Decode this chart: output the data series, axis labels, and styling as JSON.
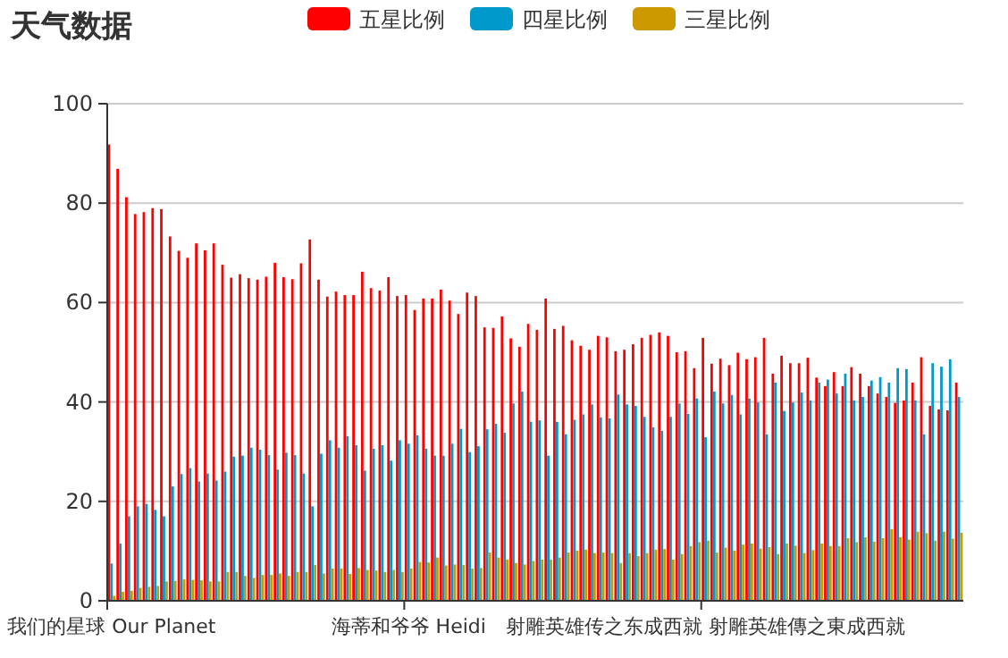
{
  "chart_data": {
    "type": "bar",
    "title": "天气数据",
    "legend": "top",
    "grid": "y",
    "ylim": [
      0,
      100
    ],
    "yticks": [
      0,
      20,
      40,
      60,
      80,
      100
    ],
    "categories": [
      "我们的星球 Our Planet",
      null,
      null,
      null,
      null,
      null,
      null,
      null,
      null,
      null,
      null,
      null,
      null,
      null,
      null,
      null,
      null,
      null,
      null,
      null,
      null,
      null,
      null,
      null,
      null,
      null,
      null,
      null,
      null,
      null,
      null,
      null,
      null,
      null,
      "海蒂和爷爷 Heidi",
      null,
      null,
      null,
      null,
      null,
      null,
      null,
      null,
      null,
      null,
      null,
      null,
      null,
      null,
      null,
      null,
      null,
      null,
      null,
      null,
      null,
      null,
      null,
      null,
      null,
      null,
      null,
      null,
      null,
      null,
      null,
      null,
      null,
      "射雕英雄传之东成西就 射雕英雄傳之東成西就",
      null,
      null,
      null,
      null,
      null,
      null,
      null,
      null,
      null,
      null,
      null,
      null,
      null,
      null,
      null,
      null,
      null,
      null,
      null,
      null,
      null,
      null,
      null,
      null,
      null,
      null,
      null,
      null,
      null
    ],
    "series": [
      {
        "name": "五星比例",
        "color": "#ff0000",
        "values": [
          91.8,
          86.9,
          81.2,
          77.8,
          78.2,
          79,
          78.8,
          73.3,
          70.4,
          69,
          71.9,
          70.5,
          71.9,
          67.6,
          65,
          65.7,
          64.9,
          64.6,
          65.2,
          68,
          65.1,
          64.7,
          67.9,
          72.7,
          64.6,
          61.2,
          62.2,
          61.5,
          61.5,
          66.2,
          62.9,
          62.4,
          65.1,
          61.3,
          61.5,
          58.5,
          60.8,
          60.8,
          62.6,
          60.4,
          57.7,
          62,
          61.3,
          55,
          54.9,
          57.2,
          52.8,
          51.1,
          55.7,
          54.5,
          60.8,
          54.7,
          55.3,
          52.4,
          51.3,
          50.5,
          53.3,
          53,
          50.2,
          50.5,
          51.6,
          52.9,
          53.5,
          54,
          53.3,
          50,
          50.2,
          46.8,
          52.9,
          47.7,
          48.7,
          47.4,
          49.9,
          48.6,
          49,
          52.9,
          45.7,
          49.3,
          47.8,
          47.8,
          48.9,
          44.9,
          43.2,
          46,
          43.2,
          47,
          45.7,
          43.2,
          41.7,
          41,
          39.8,
          40.3,
          43.9,
          49,
          39.2,
          38.5,
          38.3,
          43.9
        ]
      },
      {
        "name": "四星比例",
        "color": "#0099cc",
        "values": [
          7.5,
          11.5,
          17,
          19,
          19.5,
          18.3,
          17,
          23,
          25.5,
          26.7,
          24,
          25.6,
          24.2,
          26,
          29,
          29.2,
          30.8,
          30.4,
          29.3,
          26.4,
          29.8,
          29.3,
          25.6,
          19,
          29.6,
          32.3,
          30.8,
          33.1,
          31.3,
          26.2,
          30.6,
          31.3,
          28.2,
          32.3,
          31.6,
          33.3,
          30.6,
          29.2,
          29.2,
          31.6,
          34.6,
          29.9,
          31.1,
          34.5,
          35.6,
          33.8,
          39.7,
          42.1,
          36,
          36.3,
          29.2,
          36,
          33.5,
          36.4,
          37.5,
          39.5,
          36.9,
          36.7,
          41.5,
          39.5,
          39.2,
          37,
          34.9,
          34.2,
          37,
          39.7,
          37.6,
          40.7,
          32.9,
          42.1,
          39.7,
          41.4,
          37.5,
          40.7,
          39.9,
          33.5,
          43.9,
          38.2,
          39.9,
          41.9,
          40.3,
          43.9,
          44.5,
          41.7,
          45.7,
          40.3,
          41,
          44.3,
          45,
          43.9,
          46.8,
          46.6,
          40.3,
          33.5,
          47.8,
          47.1,
          48.6,
          41
        ]
      },
      {
        "name": "三星比例",
        "color": "#cc9900",
        "values": [
          1,
          1.8,
          2,
          2.6,
          2.8,
          3,
          3.9,
          4,
          4.3,
          4.2,
          4.1,
          3.9,
          3.9,
          5.8,
          5.8,
          5,
          4.6,
          5.2,
          5.2,
          5.5,
          5,
          5.8,
          5.8,
          7.2,
          5.5,
          6.5,
          6.5,
          5.4,
          6.6,
          6.2,
          6.1,
          5.8,
          6.2,
          5.8,
          6.5,
          7.8,
          7.7,
          8.7,
          7.1,
          7.3,
          7.2,
          6.5,
          6.6,
          9.7,
          8.7,
          8.3,
          7.6,
          7.3,
          8,
          8.3,
          8.3,
          8.7,
          9.7,
          10.1,
          10.3,
          9.6,
          9.7,
          9.6,
          7.6,
          9.6,
          9,
          9.6,
          10.3,
          10.4,
          8.3,
          9.4,
          11,
          11.8,
          12.1,
          9.7,
          10.7,
          10.1,
          11.3,
          11.5,
          10.5,
          10.8,
          9.4,
          11.5,
          11.1,
          9.6,
          10.2,
          11.5,
          11,
          11,
          12.6,
          11.8,
          12.8,
          11.9,
          12.6,
          14.4,
          12.8,
          12.3,
          13.9,
          13.6,
          12.1,
          13.9,
          12.5,
          13.7
        ]
      }
    ]
  }
}
